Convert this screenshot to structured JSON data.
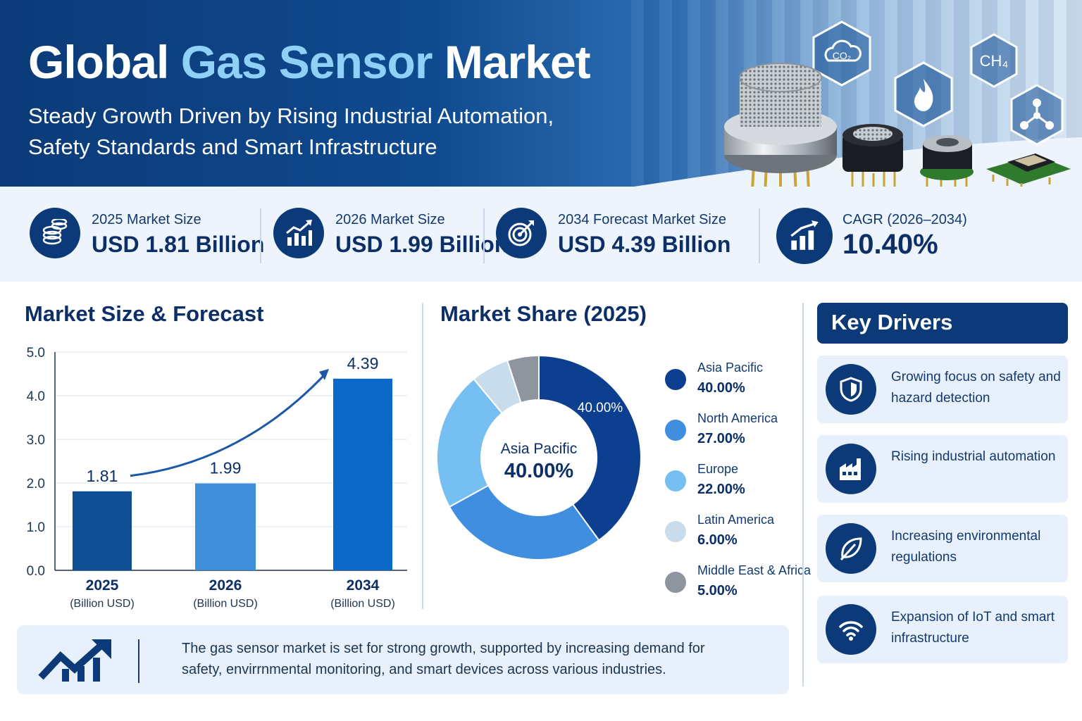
{
  "header": {
    "title_part1": "Global ",
    "title_highlight": "Gas Sensor",
    "title_part2": " Market",
    "subtitle_line1": "Steady Growth Driven by Rising Industrial Automation,",
    "subtitle_line2": "Safety Standards and Smart Infrastructure",
    "hex_labels": [
      "CO₂",
      "CH₄"
    ],
    "icons": [
      "co2-cloud-icon",
      "ch4-icon",
      "flame-icon",
      "molecule-icon"
    ]
  },
  "stats": [
    {
      "label": "2025 Market Size",
      "value": "USD 1.81 Billion",
      "icon": "coins-icon"
    },
    {
      "label": "2026 Market Size",
      "value": "USD 1.99 Billion",
      "icon": "growth-chart-icon"
    },
    {
      "label": "2034 Forecast Market Size",
      "value": "USD 4.39 Billion",
      "icon": "target-icon"
    },
    {
      "label": "CAGR (2026–2034)",
      "value": "10.40%",
      "icon": "bar-growth-icon"
    }
  ],
  "sections": {
    "market_size_title": "Market Size & Forecast",
    "market_share_title": "Market Share (2025)",
    "key_drivers_title": "Key Drivers"
  },
  "chart_data": [
    {
      "type": "bar",
      "title": "Market Size & Forecast",
      "categories": [
        "2025",
        "2026",
        "2034"
      ],
      "category_sublabels": [
        "(Billion USD)",
        "(Billion USD)",
        "(Billion USD)"
      ],
      "values": [
        1.81,
        1.99,
        4.39
      ],
      "data_labels": [
        "1.81",
        "1.99",
        "4.39"
      ],
      "colors": [
        "#0f4f94",
        "#3f8fdb",
        "#0b68c8"
      ],
      "ylim": [
        0,
        5
      ],
      "yticks": [
        "0.0",
        "1.0",
        "2.0",
        "3.0",
        "4.0",
        "5.0"
      ],
      "grid": true,
      "trend_arrow": true
    },
    {
      "type": "pie",
      "title": "Market Share (2025)",
      "donut": true,
      "center_label": "Asia Pacific",
      "center_value": "40.00%",
      "slice_label": "40.00%",
      "slices": [
        {
          "name": "Asia Pacific",
          "value": 40.0,
          "label": "40.00%",
          "color": "#0c3f8f"
        },
        {
          "name": "North America",
          "value": 27.0,
          "label": "27.00%",
          "color": "#3f8ee0"
        },
        {
          "name": "Europe",
          "value": 22.0,
          "label": "22.00%",
          "color": "#76bff2"
        },
        {
          "name": "Latin America",
          "value": 6.0,
          "label": "6.00%",
          "color": "#c9dcec"
        },
        {
          "name": "Middle East & Africa",
          "value": 5.0,
          "label": "5.00%",
          "color": "#8e959e"
        }
      ]
    }
  ],
  "drivers": [
    {
      "text": "Growing focus on safety and hazard detection",
      "icon": "shield-icon"
    },
    {
      "text": "Rising industrial automation",
      "icon": "factory-icon"
    },
    {
      "text": "Increasing environmental regulations",
      "icon": "leaf-icon"
    },
    {
      "text": "Expansion of IoT and smart infrastructure",
      "icon": "wifi-icon"
    }
  ],
  "footer": {
    "text": "The gas sensor market is set for strong growth, supported by increasing demand for safety, envirrnmental monitoring, and smart devices across various industries.",
    "icon": "trending-up-icon"
  }
}
